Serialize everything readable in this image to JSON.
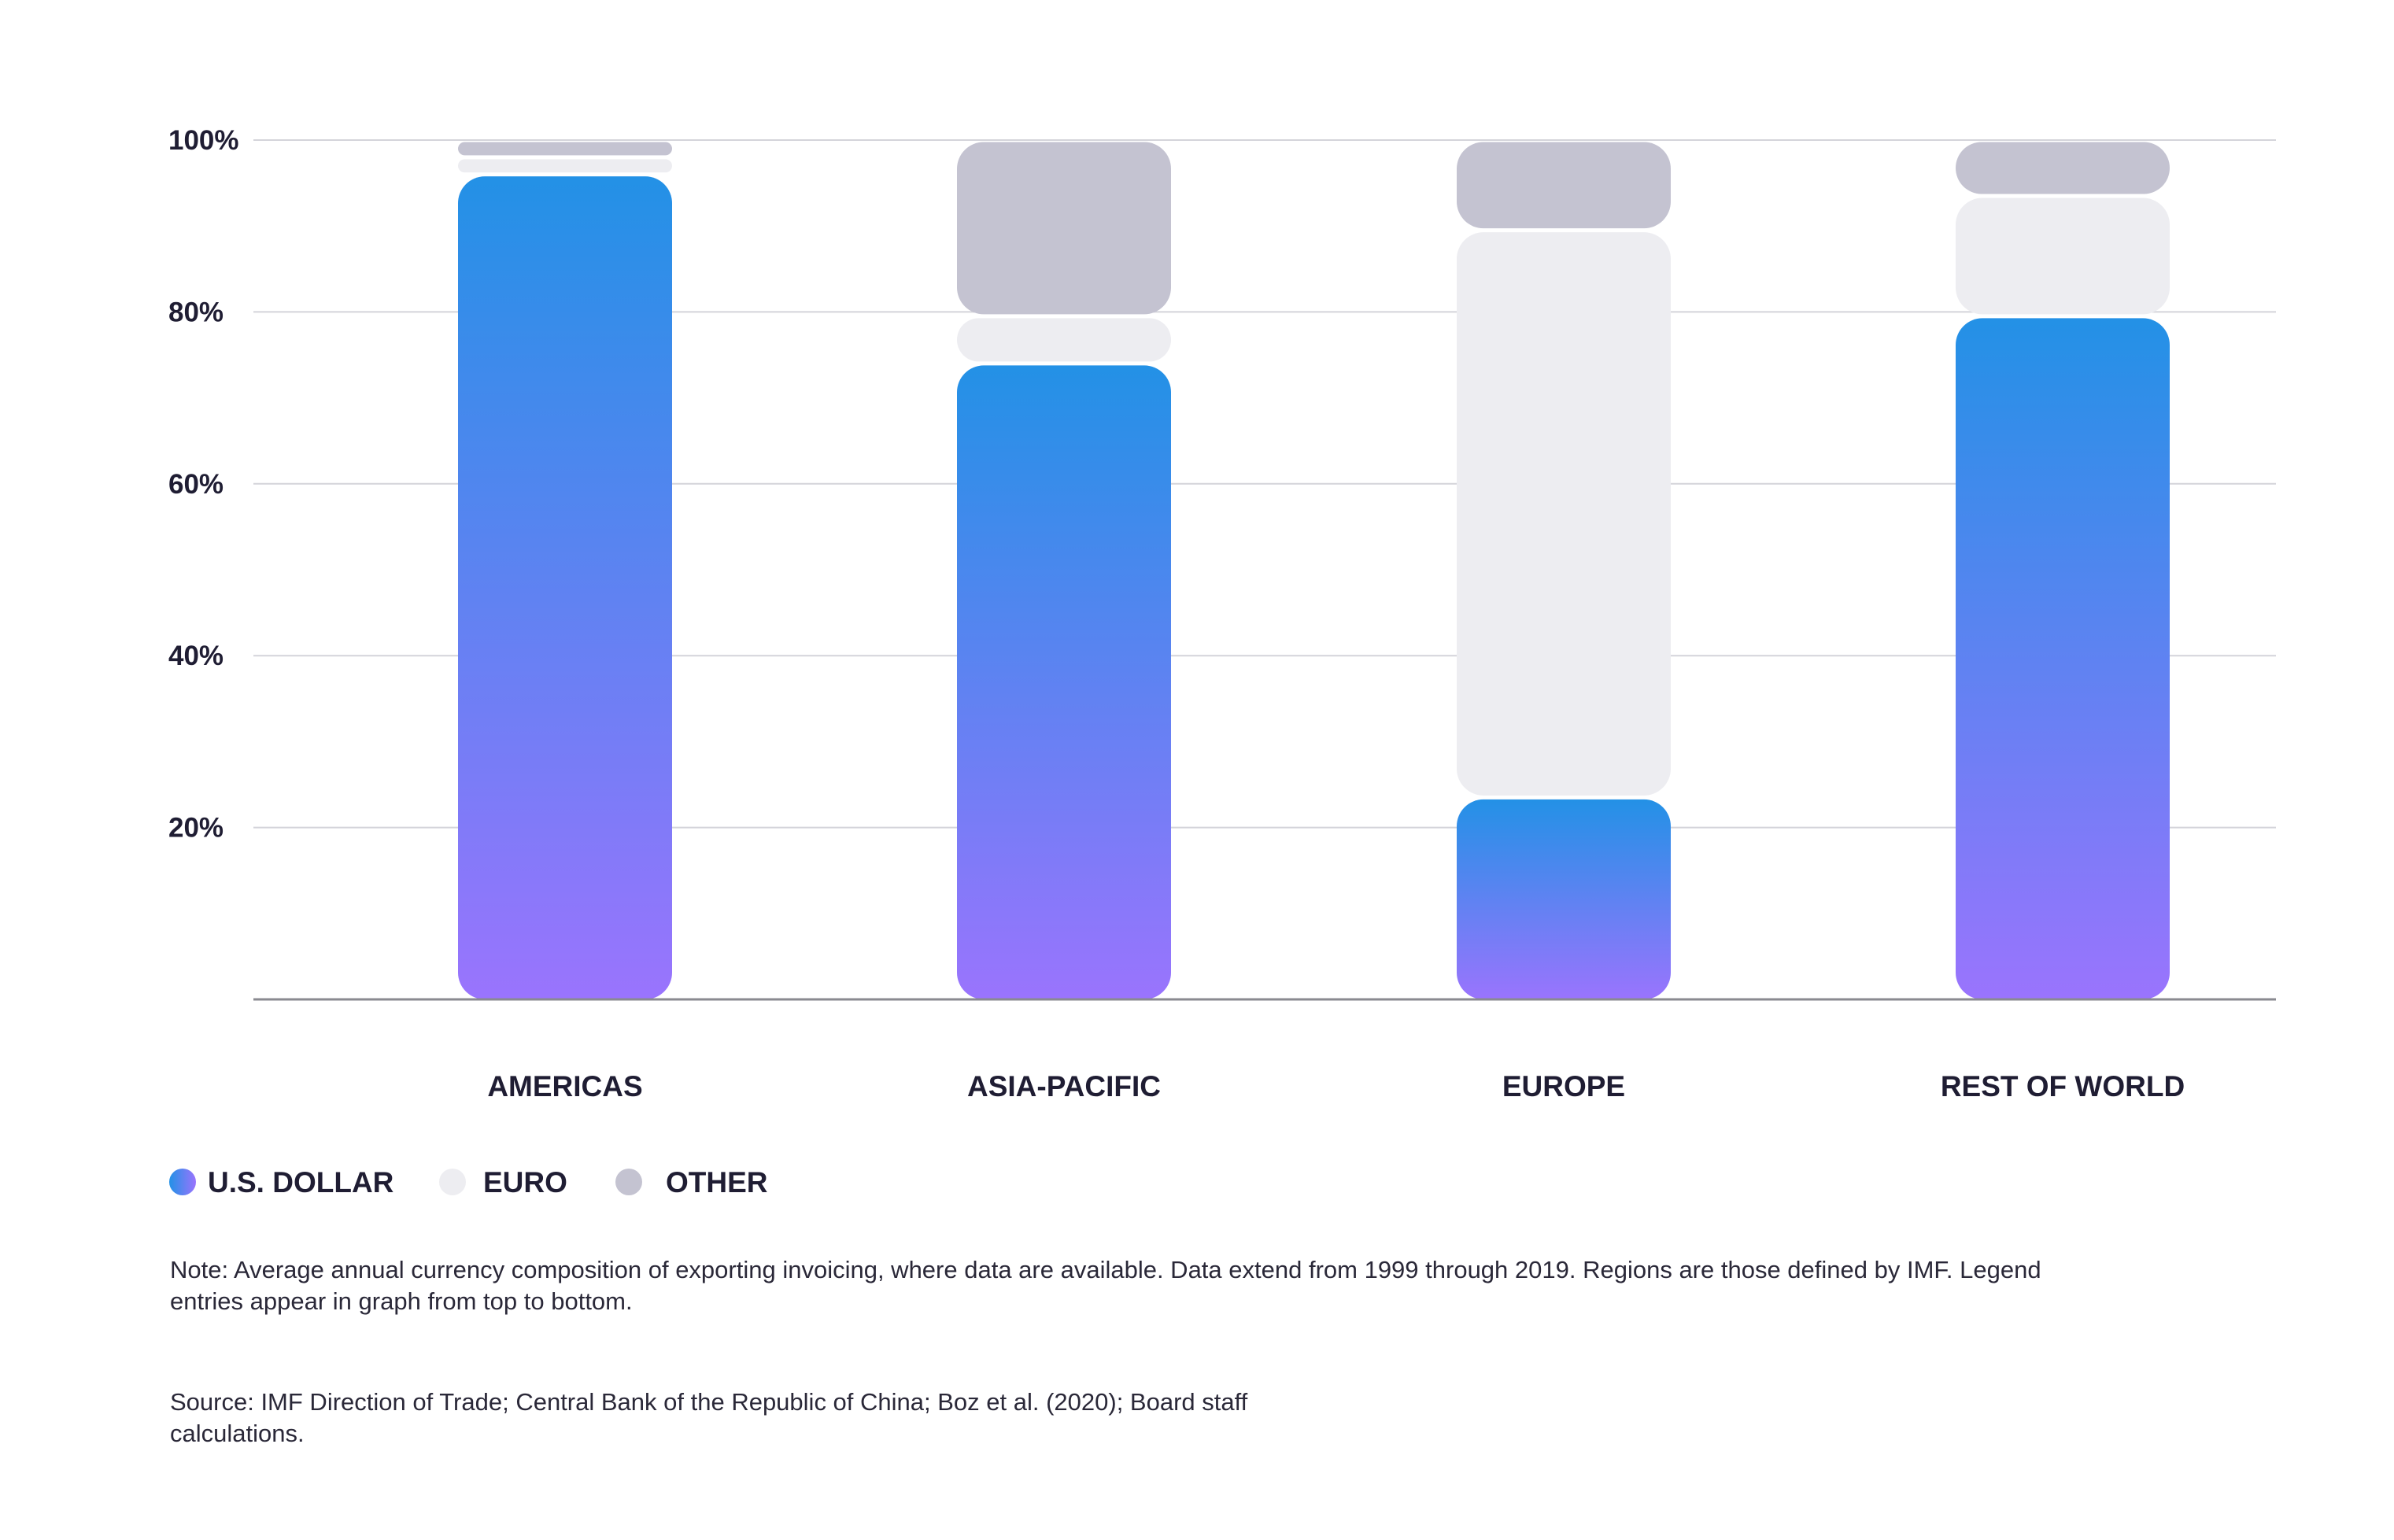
{
  "chart_data": {
    "type": "bar",
    "stacked": true,
    "categories": [
      "AMERICAS",
      "ASIA-PACIFIC",
      "EUROPE",
      "REST OF WORLD"
    ],
    "series": [
      {
        "name": "U.S. DOLLAR",
        "values": [
          96,
          74,
          23.5,
          79.5
        ]
      },
      {
        "name": "EURO",
        "values": [
          2,
          5.5,
          66,
          14
        ]
      },
      {
        "name": "OTHER",
        "values": [
          2,
          20.5,
          10.5,
          6.5
        ]
      }
    ],
    "ylim": [
      0,
      100
    ],
    "yticks": [
      20,
      40,
      60,
      80,
      100
    ],
    "ytick_labels": [
      "20%",
      "40%",
      "60%",
      "80%",
      "100%"
    ],
    "grid": true,
    "legend_position": "bottom-left",
    "colors": {
      "usd_top": "#2391e6",
      "usd_bottom": "#9a74fd",
      "euro": "#ededf1",
      "other": "#c4c3d1",
      "grid": "#d4d4da",
      "axis": "#8a8a90"
    }
  },
  "legend": {
    "items": [
      {
        "label": "U.S. DOLLAR",
        "icon": "gradient-dot-icon"
      },
      {
        "label": "EURO",
        "icon": "light-gray-dot-icon"
      },
      {
        "label": "OTHER",
        "icon": "gray-dot-icon"
      }
    ]
  },
  "note": "Note: Average annual currency composition of exporting invoicing, where data are available. Data extend from 1999 through 2019. Regions are those defined by IMF. Legend entries appear in graph from top to bottom.",
  "source": "Source: IMF Direction of Trade; Central Bank of the Republic of China; Boz et al. (2020); Board staff calculations."
}
